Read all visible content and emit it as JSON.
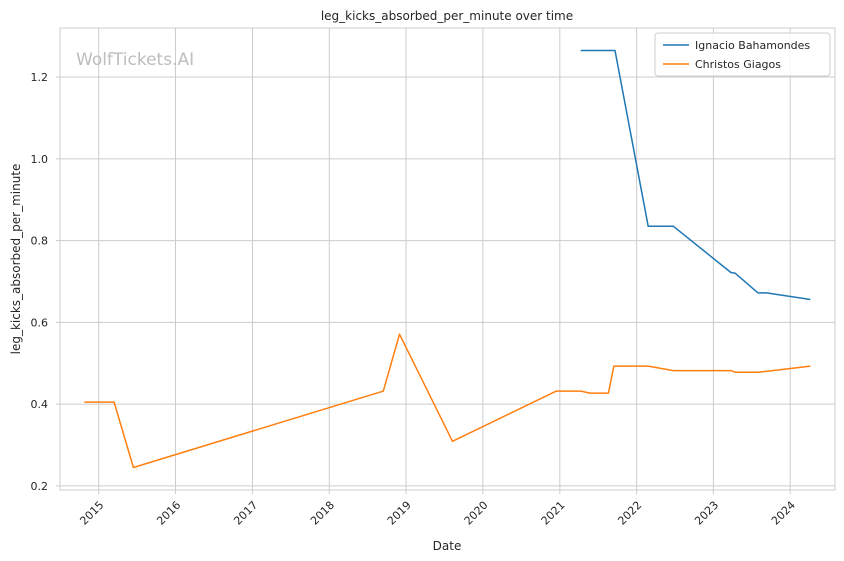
{
  "chart_data": {
    "type": "line",
    "title": "leg_kicks_absorbed_per_minute over time",
    "xlabel": "Date",
    "ylabel": "leg_kicks_absorbed_per_minute",
    "watermark": "WolfTickets.AI",
    "xlim": [
      "2014-07-01",
      "2024-08-01"
    ],
    "ylim": [
      0.19,
      1.32
    ],
    "x_ticks": [
      "2015",
      "2016",
      "2017",
      "2018",
      "2019",
      "2020",
      "2021",
      "2022",
      "2023",
      "2024"
    ],
    "y_ticks": [
      "0.2",
      "0.4",
      "0.6",
      "0.8",
      "1.0",
      "1.2"
    ],
    "grid": true,
    "legend_position": "top-right",
    "series": [
      {
        "name": "Ignacio Bahamondes",
        "color": "#1f77b4",
        "x": [
          "2021-04-10",
          "2021-09-20",
          "2022-02-25",
          "2022-06-25",
          "2023-03-25",
          "2023-04-15",
          "2023-08-01",
          "2023-09-10",
          "2024-04-06"
        ],
        "y": [
          1.265,
          1.265,
          0.835,
          0.835,
          0.722,
          0.72,
          0.672,
          0.672,
          0.656
        ]
      },
      {
        "name": "Christos Giagos",
        "color": "#ff7f0e",
        "x": [
          "2014-10-25",
          "2015-03-15",
          "2015-06-15",
          "2018-09-15",
          "2018-12-01",
          "2019-08-10",
          "2020-12-15",
          "2021-04-10",
          "2021-05-25",
          "2021-08-20",
          "2021-09-15",
          "2022-02-25",
          "2022-06-25",
          "2023-03-25",
          "2023-04-15",
          "2023-08-01",
          "2024-04-06"
        ],
        "y": [
          0.405,
          0.405,
          0.245,
          0.432,
          0.571,
          0.309,
          0.432,
          0.432,
          0.427,
          0.427,
          0.493,
          0.493,
          0.482,
          0.482,
          0.478,
          0.478,
          0.493
        ]
      }
    ]
  }
}
